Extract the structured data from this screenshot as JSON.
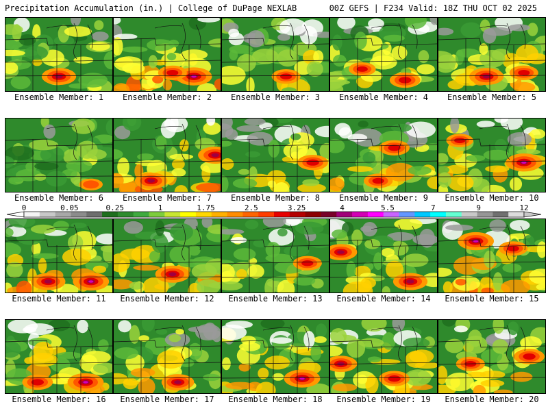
{
  "header": {
    "title": "Precipitation Accumulation (in.) | College of DuPage NEXLAB",
    "model_info": "00Z GEFS | F234 Valid: 18Z THU OCT 02 2025"
  },
  "panels": [
    {
      "label": "Ensemble Member: 1",
      "intensity": 0.35,
      "hotspots": [
        [
          0.5,
          0.8,
          0.9
        ]
      ]
    },
    {
      "label": "Ensemble Member: 2",
      "intensity": 0.7,
      "hotspots": [
        [
          0.75,
          0.8,
          1.0
        ],
        [
          0.55,
          0.75,
          0.6
        ]
      ]
    },
    {
      "label": "Ensemble Member: 3",
      "intensity": 0.4,
      "hotspots": [
        [
          0.6,
          0.8,
          0.6
        ]
      ]
    },
    {
      "label": "Ensemble Member: 4",
      "intensity": 0.45,
      "hotspots": [
        [
          0.7,
          0.85,
          0.7
        ],
        [
          0.3,
          0.7,
          0.5
        ]
      ]
    },
    {
      "label": "Ensemble Member: 5",
      "intensity": 0.6,
      "hotspots": [
        [
          0.45,
          0.8,
          0.9
        ],
        [
          0.8,
          0.75,
          0.6
        ]
      ]
    },
    {
      "label": "Ensemble Member: 6",
      "intensity": 0.15,
      "hotspots": [
        [
          0.8,
          0.9,
          0.3
        ]
      ]
    },
    {
      "label": "Ensemble Member: 7",
      "intensity": 0.7,
      "hotspots": [
        [
          0.95,
          0.5,
          0.9
        ],
        [
          0.35,
          0.85,
          0.8
        ]
      ]
    },
    {
      "label": "Ensemble Member: 8",
      "intensity": 0.4,
      "hotspots": [
        [
          0.85,
          0.6,
          0.7
        ]
      ]
    },
    {
      "label": "Ensemble Member: 9",
      "intensity": 0.5,
      "hotspots": [
        [
          0.6,
          0.4,
          0.7
        ],
        [
          0.45,
          0.85,
          0.6
        ]
      ]
    },
    {
      "label": "Ensemble Member: 10",
      "intensity": 0.65,
      "hotspots": [
        [
          0.8,
          0.6,
          1.0
        ],
        [
          0.2,
          0.3,
          0.5
        ]
      ]
    },
    {
      "label": "Ensemble Member: 11",
      "intensity": 0.7,
      "hotspots": [
        [
          0.4,
          0.85,
          0.9
        ],
        [
          0.8,
          0.85,
          1.0
        ]
      ]
    },
    {
      "label": "Ensemble Member: 12",
      "intensity": 0.55,
      "hotspots": [
        [
          0.55,
          0.75,
          0.9
        ]
      ]
    },
    {
      "label": "Ensemble Member: 13",
      "intensity": 0.4,
      "hotspots": [
        [
          0.8,
          0.6,
          0.6
        ]
      ]
    },
    {
      "label": "Ensemble Member: 14",
      "intensity": 0.45,
      "hotspots": [
        [
          0.1,
          0.45,
          0.8
        ],
        [
          0.75,
          0.85,
          0.9
        ]
      ]
    },
    {
      "label": "Ensemble Member: 15",
      "intensity": 0.7,
      "hotspots": [
        [
          0.35,
          0.3,
          1.0
        ],
        [
          0.7,
          0.4,
          0.6
        ]
      ]
    },
    {
      "label": "Ensemble Member: 16",
      "intensity": 0.6,
      "hotspots": [
        [
          0.75,
          0.85,
          1.0
        ],
        [
          0.3,
          0.85,
          0.7
        ]
      ]
    },
    {
      "label": "Ensemble Member: 17",
      "intensity": 0.55,
      "hotspots": [
        [
          0.6,
          0.85,
          0.8
        ]
      ]
    },
    {
      "label": "Ensemble Member: 18",
      "intensity": 0.55,
      "hotspots": [
        [
          0.75,
          0.8,
          1.0
        ]
      ]
    },
    {
      "label": "Ensemble Member: 19",
      "intensity": 0.6,
      "hotspots": [
        [
          0.1,
          0.6,
          0.8
        ],
        [
          0.6,
          0.8,
          0.7
        ]
      ]
    },
    {
      "label": "Ensemble Member: 20",
      "intensity": 0.55,
      "hotspots": [
        [
          0.85,
          0.5,
          0.7
        ],
        [
          0.3,
          0.6,
          0.6
        ]
      ]
    }
  ],
  "legend": {
    "tick_labels": [
      "0",
      "0.05",
      "0.25",
      "1",
      "1.75",
      "2.5",
      "3.25",
      "4",
      "5.5",
      "7",
      "9",
      "12"
    ],
    "tick_values": [
      0,
      0.05,
      0.25,
      1,
      1.75,
      2.5,
      3.25,
      4,
      5.5,
      7,
      9,
      12
    ],
    "colors": [
      "#f4f4f4",
      "#c8c8c8",
      "#a8a8a8",
      "#8c8c8c",
      "#6e6e6e",
      "#1e6e1e",
      "#2e8b2e",
      "#3faa3f",
      "#7dcc3c",
      "#c8e632",
      "#ffff00",
      "#ffd700",
      "#ffb000",
      "#ff8c00",
      "#ff6400",
      "#ff3c00",
      "#e60000",
      "#b40000",
      "#8c0000",
      "#780028",
      "#a00078",
      "#d200b4",
      "#ff00ff",
      "#c864ff",
      "#6496ff",
      "#00c8ff",
      "#00ffff",
      "#64ffd2",
      "#c8c8c8",
      "#969696",
      "#707070",
      "#dcdcdc"
    ]
  }
}
